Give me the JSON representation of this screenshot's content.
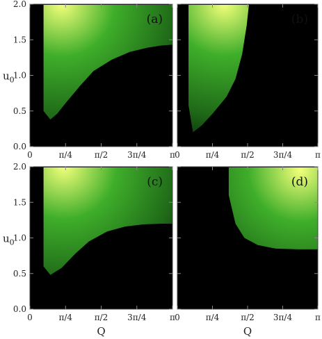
{
  "chart_data": {
    "type": "heatmap",
    "xlabel": "Q",
    "ylabel": "u",
    "ylabel_subscript": "0",
    "xlim": [
      0,
      3.14159
    ],
    "ylim": [
      0,
      2
    ],
    "x_ticks": [
      {
        "value": 0,
        "label": "0"
      },
      {
        "value": 0.7854,
        "label": "π/4"
      },
      {
        "value": 1.5708,
        "label": "π/2"
      },
      {
        "value": 2.3562,
        "label": "3π/4"
      },
      {
        "value": 3.14159,
        "label": "π"
      }
    ],
    "y_ticks": [
      {
        "value": 0.0,
        "label": "0.0"
      },
      {
        "value": 0.5,
        "label": "0.5"
      },
      {
        "value": 1.0,
        "label": "1.0"
      },
      {
        "value": 1.5,
        "label": "1.5"
      },
      {
        "value": 2.0,
        "label": "2.0"
      }
    ],
    "colors": {
      "background": "#000000",
      "low": "#0a2a08",
      "mid": "#3fae2a",
      "high": "#f2ff7a"
    },
    "panels": [
      {
        "label": "(a)",
        "boundary": [
          [
            0.3,
            1.99
          ],
          [
            0.3,
            0.5
          ],
          [
            0.45,
            0.38
          ],
          [
            0.6,
            0.46
          ],
          [
            0.8,
            0.62
          ],
          [
            1.1,
            0.85
          ],
          [
            1.4,
            1.06
          ],
          [
            1.8,
            1.22
          ],
          [
            2.2,
            1.33
          ],
          [
            2.6,
            1.39
          ],
          [
            2.9,
            1.42
          ],
          [
            3.14,
            1.43
          ],
          [
            3.14,
            1.99
          ]
        ],
        "hot": [
          0.7,
          2.0
        ]
      },
      {
        "label": "(b)",
        "boundary": [
          [
            0.25,
            1.99
          ],
          [
            0.25,
            0.58
          ],
          [
            0.35,
            0.2
          ],
          [
            0.55,
            0.3
          ],
          [
            0.8,
            0.47
          ],
          [
            1.1,
            0.7
          ],
          [
            1.3,
            0.95
          ],
          [
            1.45,
            1.3
          ],
          [
            1.55,
            1.7
          ],
          [
            1.6,
            1.99
          ]
        ],
        "hot": [
          1.05,
          2.0
        ]
      },
      {
        "label": "(c)",
        "boundary": [
          [
            0.3,
            1.99
          ],
          [
            0.3,
            0.6
          ],
          [
            0.45,
            0.48
          ],
          [
            0.7,
            0.58
          ],
          [
            1.0,
            0.78
          ],
          [
            1.3,
            0.95
          ],
          [
            1.7,
            1.09
          ],
          [
            2.1,
            1.16
          ],
          [
            2.5,
            1.19
          ],
          [
            2.9,
            1.2
          ],
          [
            3.14,
            1.2
          ],
          [
            3.14,
            1.99
          ]
        ],
        "hot": [
          0.75,
          2.0
        ]
      },
      {
        "label": "(d)",
        "boundary": [
          [
            1.15,
            1.99
          ],
          [
            1.15,
            1.6
          ],
          [
            1.3,
            1.2
          ],
          [
            1.5,
            1.0
          ],
          [
            1.8,
            0.9
          ],
          [
            2.2,
            0.85
          ],
          [
            2.7,
            0.84
          ],
          [
            3.14,
            0.84
          ],
          [
            3.14,
            1.99
          ]
        ],
        "hot": [
          2.75,
          1.95
        ]
      }
    ]
  }
}
